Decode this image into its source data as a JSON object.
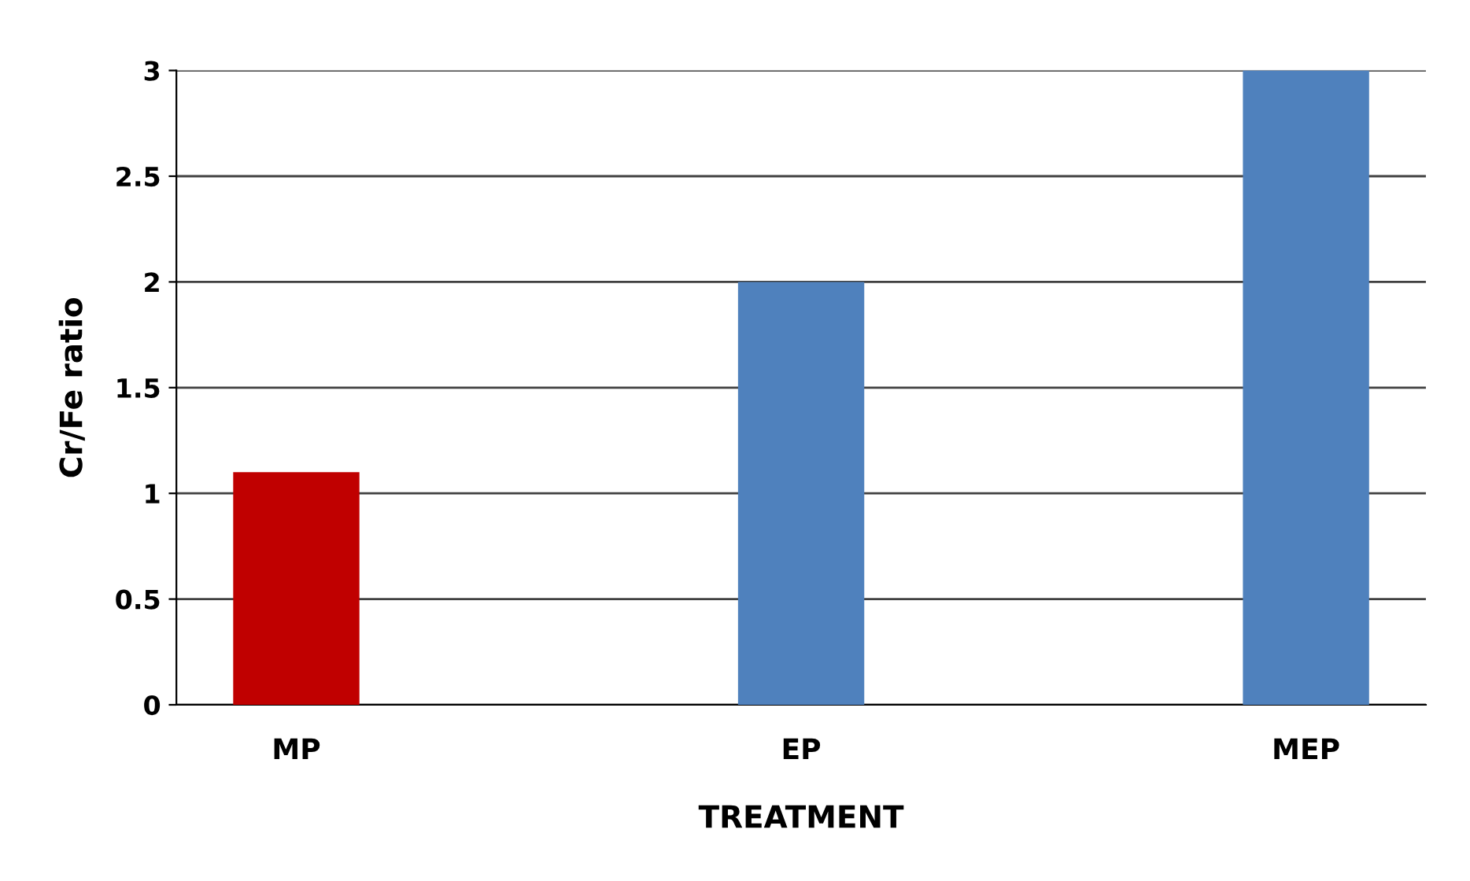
{
  "chart_data": {
    "type": "bar",
    "xlabel": "TREATMENT",
    "ylabel": "Cr/Fe ratio",
    "categories": [
      "MP",
      "EP",
      "MEP"
    ],
    "values": [
      1.1,
      2,
      3
    ],
    "colors": [
      "#c00000",
      "#4f81bd",
      "#4f81bd"
    ],
    "ylim": [
      0,
      3
    ],
    "yticks": [
      0,
      0.5,
      1,
      1.5,
      2,
      2.5,
      3
    ],
    "grid": "y"
  }
}
